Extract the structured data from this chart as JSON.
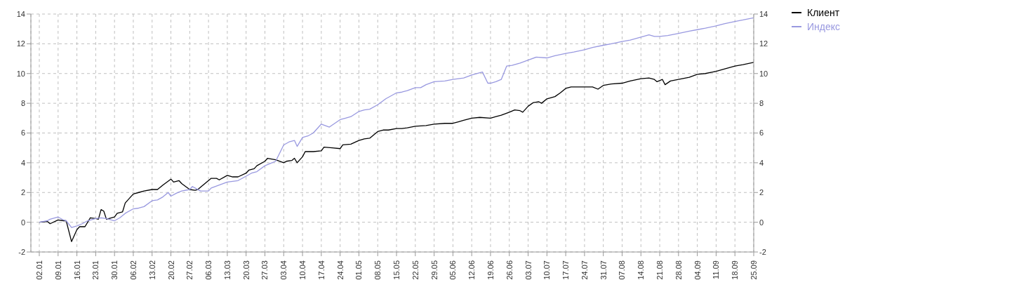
{
  "chart_data": {
    "type": "line",
    "x": [
      "--01-02",
      "--01-05",
      "--01-06",
      "--01-09",
      "--01-11",
      "--01-12",
      "--01-14",
      "--01-16",
      "--01-17",
      "--01-19",
      "--01-20",
      "--01-21",
      "--01-23",
      "--01-24",
      "--01-25",
      "--01-26",
      "--01-27",
      "--01-30",
      "--01-31",
      "--02-02",
      "--02-03",
      "--02-06",
      "--02-08",
      "--02-10",
      "--02-13",
      "--02-15",
      "--02-17",
      "--02-20",
      "--02-21",
      "--02-23",
      "--02-24",
      "--02-27",
      "--03-01",
      "--03-02",
      "--03-06",
      "--03-07",
      "--03-09",
      "--03-10",
      "--03-13",
      "--03-15",
      "--03-17",
      "--03-20",
      "--03-21",
      "--03-23",
      "--03-24",
      "--03-27",
      "--03-28",
      "--03-31",
      "--04-03",
      "--04-04",
      "--04-06",
      "--04-07",
      "--04-08",
      "--04-10",
      "--04-11",
      "--04-14",
      "--04-17",
      "--04-18",
      "--04-21",
      "--04-24",
      "--04-25",
      "--04-28",
      "--05-01",
      "--05-03",
      "--05-05",
      "--05-08",
      "--05-10",
      "--05-12",
      "--05-15",
      "--05-17",
      "--05-19",
      "--05-22",
      "--05-26",
      "--05-29",
      "--06-02",
      "--06-05",
      "--06-07",
      "--06-09",
      "--06-12",
      "--06-15",
      "--06-19",
      "--06-21",
      "--06-23",
      "--06-26",
      "--06-28",
      "--06-30",
      "--07-01",
      "--07-03",
      "--07-05",
      "--07-07",
      "--07-08",
      "--07-10",
      "--07-13",
      "--07-15",
      "--07-17",
      "--07-19",
      "--07-24",
      "--07-27",
      "--07-29",
      "--07-31",
      "--08-03",
      "--08-07",
      "--08-10",
      "--08-14",
      "--08-17",
      "--08-19",
      "--08-20",
      "--08-22",
      "--08-23",
      "--08-25",
      "--08-28",
      "--09-01",
      "--09-04",
      "--09-07",
      "--09-11",
      "--09-14",
      "--09-18",
      "--09-21",
      "--09-25"
    ],
    "series": [
      {
        "name": "Клиент",
        "color": "#000000",
        "values": [
          0,
          0.05,
          -0.1,
          0.15,
          0.1,
          0.1,
          -1.3,
          -0.5,
          -0.3,
          -0.3,
          0,
          0.3,
          0.25,
          0.2,
          0.85,
          0.75,
          0.2,
          0.35,
          0.6,
          0.7,
          1.3,
          1.9,
          2.0,
          2.1,
          2.2,
          2.2,
          2.5,
          2.9,
          2.7,
          2.8,
          2.6,
          2.2,
          2.15,
          2.2,
          2.8,
          2.95,
          2.95,
          2.85,
          3.15,
          3.05,
          3.05,
          3.3,
          3.5,
          3.6,
          3.8,
          4.1,
          4.3,
          4.2,
          4.0,
          4.1,
          4.15,
          4.3,
          4.0,
          4.4,
          4.75,
          4.75,
          4.8,
          5.05,
          5.0,
          4.95,
          5.2,
          5.25,
          5.5,
          5.6,
          5.65,
          6.1,
          6.2,
          6.2,
          6.3,
          6.3,
          6.35,
          6.45,
          6.5,
          6.6,
          6.65,
          6.65,
          6.75,
          6.85,
          7.0,
          7.05,
          7.0,
          7.1,
          7.2,
          7.4,
          7.55,
          7.5,
          7.4,
          7.8,
          8.05,
          8.1,
          8.0,
          8.3,
          8.45,
          8.7,
          9.0,
          9.1,
          9.1,
          9.1,
          8.95,
          9.2,
          9.3,
          9.35,
          9.5,
          9.65,
          9.7,
          9.6,
          9.45,
          9.6,
          9.25,
          9.5,
          9.6,
          9.75,
          9.95,
          10.0,
          10.15,
          10.3,
          10.5,
          10.6,
          10.75
        ]
      },
      {
        "name": "Индекс",
        "color": "#9999e0",
        "x": [
          "--01-02",
          "--01-05",
          "--01-06",
          "--01-09",
          "--01-11",
          "--01-12",
          "--01-14",
          "--01-16",
          "--01-18",
          "--01-20",
          "--01-23",
          "--01-25",
          "--01-27",
          "--01-30",
          "--02-01",
          "--02-03",
          "--02-06",
          "--02-08",
          "--02-10",
          "--02-13",
          "--02-15",
          "--02-17",
          "--02-19",
          "--02-20",
          "--02-22",
          "--02-24",
          "--02-27",
          "--02-28",
          "--03-01",
          "--03-03",
          "--03-06",
          "--03-07",
          "--03-10",
          "--03-13",
          "--03-15",
          "--03-17",
          "--03-20",
          "--03-22",
          "--03-24",
          "--03-27",
          "--03-29",
          "--03-31",
          "--04-03",
          "--04-05",
          "--04-07",
          "--04-08",
          "--04-10",
          "--04-12",
          "--04-14",
          "--04-17",
          "--04-20",
          "--04-24",
          "--04-26",
          "--04-28",
          "--05-01",
          "--05-03",
          "--05-05",
          "--05-08",
          "--05-11",
          "--05-15",
          "--05-17",
          "--05-19",
          "--05-22",
          "--05-24",
          "--05-26",
          "--05-29",
          "--06-02",
          "--06-05",
          "--06-09",
          "--06-12",
          "--06-15",
          "--06-16",
          "--06-18",
          "--06-19",
          "--06-21",
          "--06-23",
          "--06-25",
          "--06-27",
          "--06-30",
          "--07-03",
          "--07-06",
          "--07-10",
          "--07-13",
          "--07-17",
          "--07-20",
          "--07-24",
          "--07-27",
          "--07-31",
          "--08-03",
          "--08-07",
          "--08-10",
          "--08-14",
          "--08-17",
          "--08-19",
          "--08-21",
          "--08-24",
          "--08-28",
          "--09-01",
          "--09-04",
          "--09-07",
          "--09-11",
          "--09-14",
          "--09-18",
          "--09-21",
          "--09-25"
        ],
        "values": [
          0,
          0.1,
          0.2,
          0.35,
          0.15,
          0.1,
          -0.35,
          -0.25,
          -0.1,
          0.1,
          0.25,
          0.3,
          0.25,
          0.1,
          0.3,
          0.6,
          0.9,
          0.95,
          1.05,
          1.45,
          1.5,
          1.7,
          2.0,
          1.75,
          1.95,
          2.1,
          2.2,
          2.4,
          2.3,
          2.1,
          2.1,
          2.3,
          2.5,
          2.7,
          2.75,
          2.8,
          3.1,
          3.3,
          3.4,
          3.8,
          3.95,
          4.1,
          5.2,
          5.4,
          5.5,
          5.1,
          5.7,
          5.8,
          6.0,
          6.6,
          6.4,
          6.9,
          7.0,
          7.1,
          7.45,
          7.55,
          7.6,
          7.9,
          8.3,
          8.7,
          8.75,
          8.85,
          9.05,
          9.05,
          9.25,
          9.45,
          9.5,
          9.6,
          9.7,
          9.9,
          10.05,
          10.1,
          9.35,
          9.35,
          9.45,
          9.6,
          10.5,
          10.55,
          10.7,
          10.9,
          11.1,
          11.05,
          11.2,
          11.35,
          11.45,
          11.6,
          11.75,
          11.9,
          12.0,
          12.15,
          12.25,
          12.45,
          12.6,
          12.5,
          12.5,
          12.55,
          12.7,
          12.85,
          12.95,
          13.05,
          13.2,
          13.35,
          13.5,
          13.6,
          13.75
        ]
      }
    ],
    "xlim": [
      "--01-02",
      "--09-25"
    ],
    "xticks": [
      {
        "value": "--01-02",
        "label": "02.01"
      },
      {
        "value": "--01-09",
        "label": "09.01"
      },
      {
        "value": "--01-16",
        "label": "16.01"
      },
      {
        "value": "--01-23",
        "label": "23.01"
      },
      {
        "value": "--01-30",
        "label": "30.01"
      },
      {
        "value": "--02-06",
        "label": "06.02"
      },
      {
        "value": "--02-13",
        "label": "13.02"
      },
      {
        "value": "--02-20",
        "label": "20.02"
      },
      {
        "value": "--02-27",
        "label": "27.02"
      },
      {
        "value": "--03-06",
        "label": "06.03"
      },
      {
        "value": "--03-13",
        "label": "13.03"
      },
      {
        "value": "--03-20",
        "label": "20.03"
      },
      {
        "value": "--03-27",
        "label": "27.03"
      },
      {
        "value": "--04-03",
        "label": "03.04"
      },
      {
        "value": "--04-10",
        "label": "10.04"
      },
      {
        "value": "--04-17",
        "label": "17.04"
      },
      {
        "value": "--04-24",
        "label": "24.04"
      },
      {
        "value": "--05-01",
        "label": "01.05"
      },
      {
        "value": "--05-08",
        "label": "08.05"
      },
      {
        "value": "--05-15",
        "label": "15.05"
      },
      {
        "value": "--05-22",
        "label": "22.05"
      },
      {
        "value": "--05-29",
        "label": "29.05"
      },
      {
        "value": "--06-05",
        "label": "05.06"
      },
      {
        "value": "--06-12",
        "label": "12.06"
      },
      {
        "value": "--06-19",
        "label": "19.06"
      },
      {
        "value": "--06-26",
        "label": "26.06"
      },
      {
        "value": "--07-03",
        "label": "03.07"
      },
      {
        "value": "--07-10",
        "label": "10.07"
      },
      {
        "value": "--07-17",
        "label": "17.07"
      },
      {
        "value": "--07-24",
        "label": "24.07"
      },
      {
        "value": "--07-31",
        "label": "31.07"
      },
      {
        "value": "--08-07",
        "label": "07.08"
      },
      {
        "value": "--08-14",
        "label": "14.08"
      },
      {
        "value": "--08-21",
        "label": "21.08"
      },
      {
        "value": "--08-28",
        "label": "28.08"
      },
      {
        "value": "--09-04",
        "label": "04.09"
      },
      {
        "value": "--09-11",
        "label": "11.09"
      },
      {
        "value": "--09-18",
        "label": "18.09"
      },
      {
        "value": "--09-25",
        "label": "25.09"
      }
    ],
    "ylim": [
      -2,
      14
    ],
    "yticks": [
      -2,
      0,
      2,
      4,
      6,
      8,
      10,
      12,
      14
    ],
    "y2lim": [
      -2,
      14
    ],
    "y2ticks": [
      -2,
      0,
      2,
      4,
      6,
      8,
      10,
      12,
      14
    ],
    "grid": true,
    "legend": "top right",
    "line_style": "solid",
    "marker": "none"
  }
}
